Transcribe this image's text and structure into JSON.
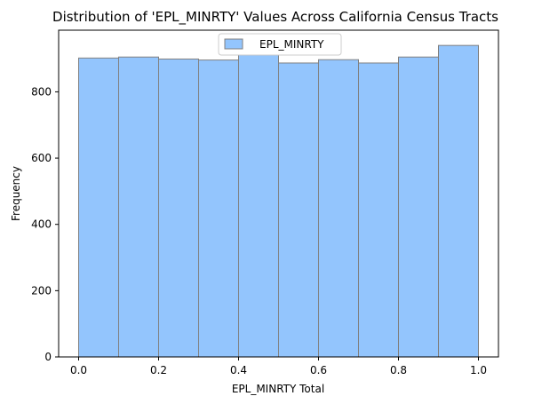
{
  "chart_data": {
    "type": "bar",
    "title": "Distribution of 'EPL_MINRTY' Values Across California Census Tracts",
    "xlabel": "EPL_MINRTY Total",
    "ylabel": "Frequency",
    "bin_edges": [
      0.0,
      0.1,
      0.2,
      0.3,
      0.4,
      0.5,
      0.6,
      0.7,
      0.8,
      0.9,
      1.0
    ],
    "series": [
      {
        "name": "EPL_MINRTY",
        "values": [
          902,
          905,
          899,
          896,
          911,
          887,
          897,
          887,
          905,
          940
        ]
      }
    ],
    "xlim": [
      -0.05,
      1.05
    ],
    "ylim": [
      0,
      986
    ],
    "x_ticks": [
      0.0,
      0.2,
      0.4,
      0.6,
      0.8,
      1.0
    ],
    "x_tick_labels": [
      "0.0",
      "0.2",
      "0.4",
      "0.6",
      "0.8",
      "1.0"
    ],
    "y_ticks": [
      0,
      200,
      400,
      600,
      800
    ],
    "y_tick_labels": [
      "0",
      "200",
      "400",
      "600",
      "800"
    ],
    "legend_position": "upper-center",
    "grid": false,
    "colors": {
      "bar_fill": "#93c5fd",
      "bar_edge": "#808080"
    }
  }
}
